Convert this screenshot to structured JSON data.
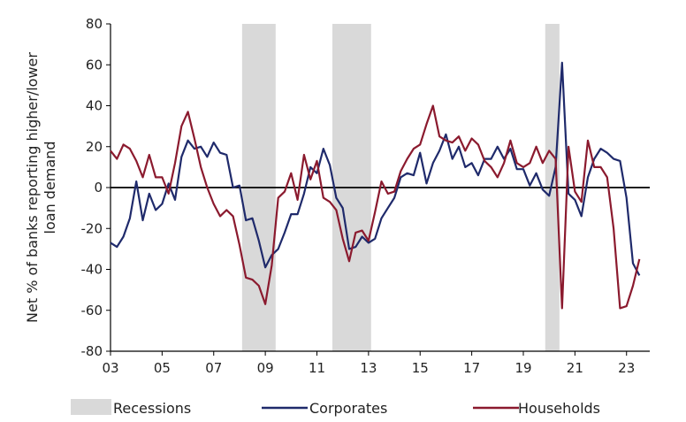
{
  "chart_data": {
    "type": "line",
    "ylabel_lines": [
      "Net % of banks reporting higher/lower",
      "loan demand"
    ],
    "xlabel": "",
    "ylim": [
      -80,
      80
    ],
    "yticks": [
      80,
      60,
      40,
      20,
      0,
      -20,
      -40,
      -60,
      -80
    ],
    "xlim": [
      2003,
      2023.9
    ],
    "xticks": [
      {
        "value": 2003,
        "label": "03"
      },
      {
        "value": 2005,
        "label": "05"
      },
      {
        "value": 2007,
        "label": "07"
      },
      {
        "value": 2009,
        "label": "09"
      },
      {
        "value": 2011,
        "label": "11"
      },
      {
        "value": 2013,
        "label": "13"
      },
      {
        "value": 2015,
        "label": "15"
      },
      {
        "value": 2017,
        "label": "17"
      },
      {
        "value": 2019,
        "label": "19"
      },
      {
        "value": 2021,
        "label": "21"
      },
      {
        "value": 2023,
        "label": "23"
      }
    ],
    "recessions": [
      {
        "start": 2008.1,
        "end": 2009.4
      },
      {
        "start": 2011.6,
        "end": 2013.1
      },
      {
        "start": 2019.85,
        "end": 2020.4
      }
    ],
    "legend": [
      {
        "label": "Recessions",
        "kind": "band",
        "color": "#d9d9d9"
      },
      {
        "label": "Corporates",
        "kind": "line",
        "color": "#1f2a6b"
      },
      {
        "label": "Households",
        "kind": "line",
        "color": "#8b1a2e"
      }
    ],
    "series": [
      {
        "name": "Corporates",
        "color": "#1f2a6b",
        "points": [
          [
            2003.0,
            -27
          ],
          [
            2003.25,
            -29
          ],
          [
            2003.5,
            -24
          ],
          [
            2003.75,
            -15
          ],
          [
            2004.0,
            3
          ],
          [
            2004.25,
            -16
          ],
          [
            2004.5,
            -3
          ],
          [
            2004.75,
            -11
          ],
          [
            2005.0,
            -8
          ],
          [
            2005.25,
            2
          ],
          [
            2005.5,
            -6
          ],
          [
            2005.75,
            15
          ],
          [
            2006.0,
            23
          ],
          [
            2006.25,
            19
          ],
          [
            2006.5,
            20
          ],
          [
            2006.75,
            15
          ],
          [
            2007.0,
            22
          ],
          [
            2007.25,
            17
          ],
          [
            2007.5,
            16
          ],
          [
            2007.75,
            0
          ],
          [
            2008.0,
            1
          ],
          [
            2008.25,
            -16
          ],
          [
            2008.5,
            -15
          ],
          [
            2008.75,
            -26
          ],
          [
            2009.0,
            -39
          ],
          [
            2009.25,
            -33
          ],
          [
            2009.5,
            -30
          ],
          [
            2009.75,
            -22
          ],
          [
            2010.0,
            -13
          ],
          [
            2010.25,
            -13
          ],
          [
            2010.5,
            -3
          ],
          [
            2010.75,
            10
          ],
          [
            2011.0,
            7
          ],
          [
            2011.25,
            19
          ],
          [
            2011.5,
            11
          ],
          [
            2011.75,
            -5
          ],
          [
            2012.0,
            -10
          ],
          [
            2012.25,
            -30
          ],
          [
            2012.5,
            -29
          ],
          [
            2012.75,
            -24
          ],
          [
            2013.0,
            -27
          ],
          [
            2013.25,
            -25
          ],
          [
            2013.5,
            -15
          ],
          [
            2013.75,
            -10
          ],
          [
            2014.0,
            -5
          ],
          [
            2014.25,
            5
          ],
          [
            2014.5,
            7
          ],
          [
            2014.75,
            6
          ],
          [
            2015.0,
            17
          ],
          [
            2015.25,
            2
          ],
          [
            2015.5,
            12
          ],
          [
            2015.75,
            18
          ],
          [
            2016.0,
            26
          ],
          [
            2016.25,
            14
          ],
          [
            2016.5,
            20
          ],
          [
            2016.75,
            10
          ],
          [
            2017.0,
            12
          ],
          [
            2017.25,
            6
          ],
          [
            2017.5,
            14
          ],
          [
            2017.75,
            14
          ],
          [
            2018.0,
            20
          ],
          [
            2018.25,
            14
          ],
          [
            2018.5,
            19
          ],
          [
            2018.75,
            9
          ],
          [
            2019.0,
            9
          ],
          [
            2019.25,
            1
          ],
          [
            2019.5,
            7
          ],
          [
            2019.75,
            -1
          ],
          [
            2020.0,
            -4
          ],
          [
            2020.25,
            10
          ],
          [
            2020.5,
            61
          ],
          [
            2020.75,
            -3
          ],
          [
            2021.0,
            -6
          ],
          [
            2021.25,
            -14
          ],
          [
            2021.5,
            5
          ],
          [
            2021.75,
            14
          ],
          [
            2022.0,
            19
          ],
          [
            2022.25,
            17
          ],
          [
            2022.5,
            14
          ],
          [
            2022.75,
            13
          ],
          [
            2023.0,
            -5
          ],
          [
            2023.25,
            -37
          ],
          [
            2023.5,
            -43
          ]
        ]
      },
      {
        "name": "Households",
        "color": "#8b1a2e",
        "points": [
          [
            2003.0,
            18
          ],
          [
            2003.25,
            14
          ],
          [
            2003.5,
            21
          ],
          [
            2003.75,
            19
          ],
          [
            2004.0,
            13
          ],
          [
            2004.25,
            5
          ],
          [
            2004.5,
            16
          ],
          [
            2004.75,
            5
          ],
          [
            2005.0,
            5
          ],
          [
            2005.25,
            -3
          ],
          [
            2005.5,
            12
          ],
          [
            2005.75,
            30
          ],
          [
            2006.0,
            37
          ],
          [
            2006.25,
            24
          ],
          [
            2006.5,
            10
          ],
          [
            2006.75,
            0
          ],
          [
            2007.0,
            -8
          ],
          [
            2007.25,
            -14
          ],
          [
            2007.5,
            -11
          ],
          [
            2007.75,
            -14
          ],
          [
            2008.0,
            -28
          ],
          [
            2008.25,
            -44
          ],
          [
            2008.5,
            -45
          ],
          [
            2008.75,
            -48
          ],
          [
            2009.0,
            -57
          ],
          [
            2009.25,
            -38
          ],
          [
            2009.5,
            -5
          ],
          [
            2009.75,
            -2
          ],
          [
            2010.0,
            7
          ],
          [
            2010.25,
            -6
          ],
          [
            2010.5,
            16
          ],
          [
            2010.75,
            4
          ],
          [
            2011.0,
            13
          ],
          [
            2011.25,
            -5
          ],
          [
            2011.5,
            -7
          ],
          [
            2011.75,
            -11
          ],
          [
            2012.0,
            -25
          ],
          [
            2012.25,
            -36
          ],
          [
            2012.5,
            -22
          ],
          [
            2012.75,
            -21
          ],
          [
            2013.0,
            -26
          ],
          [
            2013.25,
            -12
          ],
          [
            2013.5,
            3
          ],
          [
            2013.75,
            -3
          ],
          [
            2014.0,
            -2
          ],
          [
            2014.25,
            8
          ],
          [
            2014.5,
            14
          ],
          [
            2014.75,
            19
          ],
          [
            2015.0,
            21
          ],
          [
            2015.25,
            31
          ],
          [
            2015.5,
            40
          ],
          [
            2015.75,
            25
          ],
          [
            2016.0,
            23
          ],
          [
            2016.25,
            22
          ],
          [
            2016.5,
            25
          ],
          [
            2016.75,
            18
          ],
          [
            2017.0,
            24
          ],
          [
            2017.25,
            21
          ],
          [
            2017.5,
            13
          ],
          [
            2017.75,
            10
          ],
          [
            2018.0,
            5
          ],
          [
            2018.25,
            12
          ],
          [
            2018.5,
            23
          ],
          [
            2018.75,
            12
          ],
          [
            2019.0,
            10
          ],
          [
            2019.25,
            12
          ],
          [
            2019.5,
            20
          ],
          [
            2019.75,
            12
          ],
          [
            2020.0,
            18
          ],
          [
            2020.25,
            14
          ],
          [
            2020.5,
            -59
          ],
          [
            2020.75,
            20
          ],
          [
            2021.0,
            -2
          ],
          [
            2021.25,
            -7
          ],
          [
            2021.5,
            23
          ],
          [
            2021.75,
            10
          ],
          [
            2022.0,
            10
          ],
          [
            2022.25,
            5
          ],
          [
            2022.5,
            -20
          ],
          [
            2022.75,
            -59
          ],
          [
            2023.0,
            -58
          ],
          [
            2023.25,
            -48
          ],
          [
            2023.5,
            -35
          ]
        ]
      }
    ]
  }
}
